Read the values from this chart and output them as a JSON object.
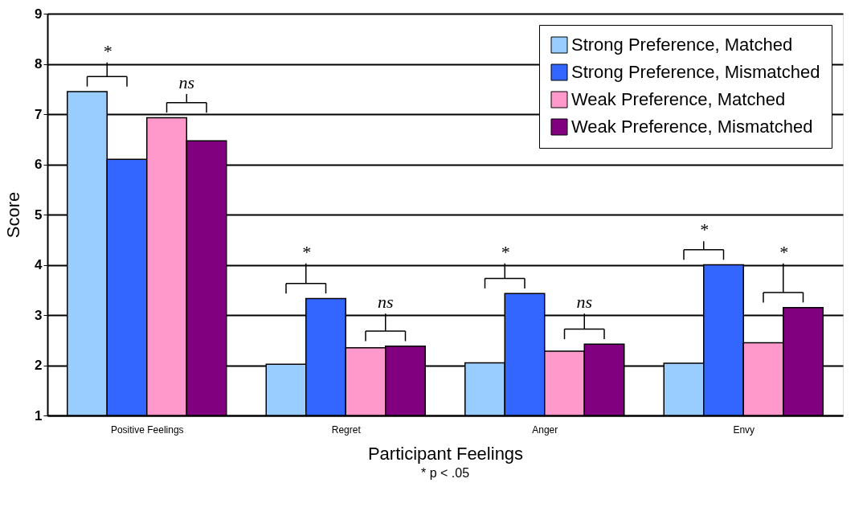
{
  "chart_data": {
    "type": "bar",
    "xlabel": "Participant Feelings",
    "ylabel": "Score",
    "categories": [
      "Positive Feelings",
      "Regret",
      "Anger",
      "Envy"
    ],
    "series": [
      {
        "name": "Strong Preference, Matched",
        "color": "#99ccff",
        "values": [
          7.45,
          2.02,
          2.05,
          2.04
        ]
      },
      {
        "name": "Strong Preference, Mismatched",
        "color": "#3366ff",
        "values": [
          6.1,
          3.33,
          3.43,
          4.0
        ]
      },
      {
        "name": "Weak Preference, Matched",
        "color": "#ff99cc",
        "values": [
          6.93,
          2.35,
          2.28,
          2.45
        ]
      },
      {
        "name": "Weak Preference, Mismatched",
        "color": "#800080",
        "values": [
          6.47,
          2.38,
          2.42,
          3.15
        ]
      }
    ],
    "ylim": [
      1,
      9
    ],
    "yticks": [
      1,
      2,
      3,
      4,
      5,
      6,
      7,
      8,
      9
    ],
    "grid": "y",
    "legend": "top right",
    "annotations": [
      "*",
      "ns",
      "*",
      "ns",
      "*",
      "ns",
      "*",
      "*",
      "* p < .05"
    ]
  }
}
